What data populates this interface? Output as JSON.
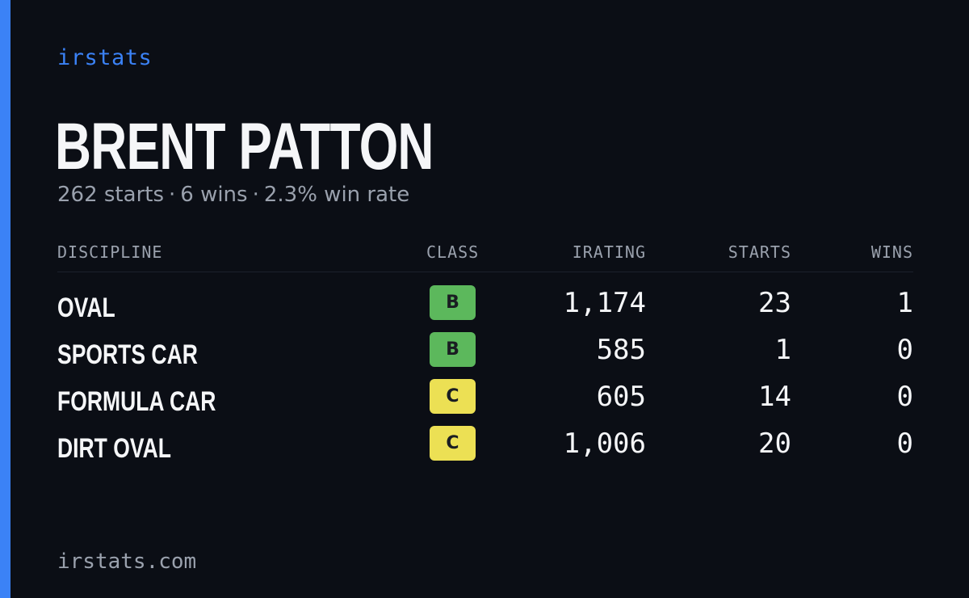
{
  "brand": "irstats",
  "driver": {
    "name": "BRENT PATTON",
    "summary": {
      "starts": "262 starts",
      "sep": "·",
      "wins": "6 wins",
      "win_rate": "2.3% win rate"
    }
  },
  "table": {
    "headers": {
      "discipline": "DISCIPLINE",
      "class": "CLASS",
      "irating": "IRATING",
      "starts": "STARTS",
      "wins": "WINS"
    },
    "rows": [
      {
        "discipline": "OVAL",
        "class": "B",
        "irating": "1,174",
        "starts": "23",
        "wins": "1"
      },
      {
        "discipline": "SPORTS CAR",
        "class": "B",
        "irating": "585",
        "starts": "1",
        "wins": "0"
      },
      {
        "discipline": "FORMULA CAR",
        "class": "C",
        "irating": "605",
        "starts": "14",
        "wins": "0"
      },
      {
        "discipline": "DIRT OVAL",
        "class": "C",
        "irating": "1,006",
        "starts": "20",
        "wins": "0"
      }
    ]
  },
  "footer": "irstats.com",
  "colors": {
    "accent": "#3b82f6",
    "class_b": "#5cb85c",
    "class_c": "#ece054",
    "background": "#0b0e15"
  }
}
